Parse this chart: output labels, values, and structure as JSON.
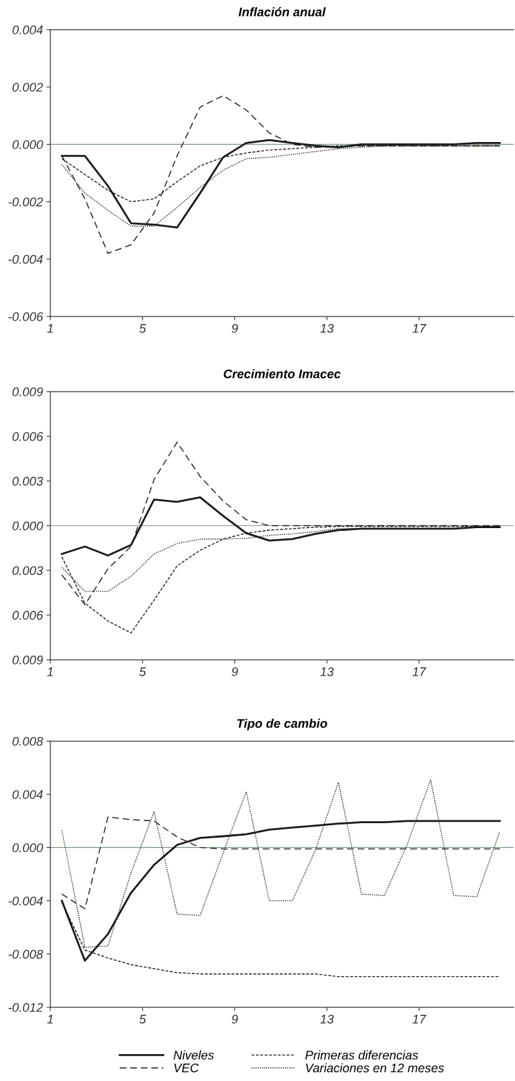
{
  "chart_data": [
    {
      "type": "line",
      "title": "Inflación anual",
      "x": [
        1.5,
        2.5,
        3.5,
        4.5,
        5.5,
        6.5,
        7.5,
        8.5,
        9.5,
        10.5,
        11.5,
        12.5,
        13.5,
        14.5,
        15.5,
        16.5,
        17.5,
        18.5,
        19.5,
        20.5
      ],
      "xlim": [
        1,
        21.1
      ],
      "xticks": [
        1,
        5,
        9,
        13,
        17
      ],
      "ylim": [
        -0.006,
        0.004
      ],
      "yticks": [
        {
          "value": -0.006,
          "label": "-0.006"
        },
        {
          "value": -0.004,
          "label": "-0.004"
        },
        {
          "value": -0.002,
          "label": "-0.002"
        },
        {
          "value": 0,
          "label": "0.000"
        },
        {
          "value": 0.002,
          "label": "0.002"
        },
        {
          "value": 0.004,
          "label": "0.004"
        }
      ],
      "ref_lines": [
        {
          "axis": "y",
          "value": 0,
          "color": "#7a9a7a"
        }
      ],
      "grid": false,
      "legend": false,
      "series": [
        {
          "color": "#1a1a1a",
          "line_style": "solid",
          "values": [
            -0.0004,
            -0.0004,
            -0.00145,
            -0.00275,
            -0.0028,
            -0.0029,
            -0.0017,
            -0.00045,
            5e-05,
            0.00015,
            5e-05,
            -5e-05,
            -0.0001,
            0,
            0,
            0,
            0,
            0,
            5e-05,
            5e-05
          ]
        },
        {
          "color": "#1a1a1a",
          "line_style": "dashed",
          "values": [
            -0.0004,
            -0.0019,
            -0.0038,
            -0.0035,
            -0.0024,
            -0.0004,
            0.0013,
            0.0017,
            0.0012,
            0.0004,
            0,
            -0.0001,
            -0.0001,
            -5e-05,
            -5e-05,
            -5e-05,
            -5e-05,
            -5e-05,
            -5e-05,
            -5e-05
          ]
        },
        {
          "color": "#1a1a1a",
          "line_style": "dashed",
          "values": [
            -0.0005,
            -0.00105,
            -0.0016,
            -0.002,
            -0.0019,
            -0.0013,
            -0.00075,
            -0.00045,
            -0.0003,
            -0.0002,
            -0.00015,
            -0.0001,
            -5e-05,
            -5e-05,
            -5e-05,
            -5e-05,
            -5e-05,
            -5e-05,
            -5e-05,
            -5e-05
          ]
        },
        {
          "color": "#1a1a1a",
          "line_style": "dotted",
          "values": [
            -0.0007,
            -0.0017,
            -0.0023,
            -0.00285,
            -0.00285,
            -0.0022,
            -0.0015,
            -0.0009,
            -0.0005,
            -0.00045,
            -0.00035,
            -0.00025,
            -0.00015,
            -0.0001,
            -5e-05,
            -5e-05,
            -5e-05,
            -5e-05,
            -5e-05,
            -5e-05
          ]
        }
      ]
    },
    {
      "type": "line",
      "title": "Crecimiento Imacec",
      "x": [
        1.5,
        2.5,
        3.5,
        4.5,
        5.5,
        6.5,
        7.5,
        8.5,
        9.5,
        10.5,
        11.5,
        12.5,
        13.5,
        14.5,
        15.5,
        16.5,
        17.5,
        18.5,
        19.5,
        20.5
      ],
      "xlim": [
        1,
        21.1
      ],
      "xticks": [
        1,
        5,
        9,
        13,
        17
      ],
      "ylim": [
        -0.009,
        0.009
      ],
      "yticks": [
        {
          "value": -0.009,
          "label": "0.009"
        },
        {
          "value": -0.006,
          "label": "0.006"
        },
        {
          "value": -0.003,
          "label": "0.003"
        },
        {
          "value": 0,
          "label": "0.000"
        },
        {
          "value": 0.003,
          "label": "0.003"
        },
        {
          "value": 0.006,
          "label": "0.006"
        },
        {
          "value": 0.009,
          "label": "0.009"
        }
      ],
      "ref_lines": [
        {
          "axis": "y",
          "value": 0,
          "color": "#7a9a7a"
        }
      ],
      "grid": false,
      "legend": false,
      "series": [
        {
          "color": "#1a1a1a",
          "line_style": "solid",
          "values": [
            -0.0019,
            -0.0014,
            -0.002,
            -0.0013,
            0.00175,
            0.0016,
            0.0019,
            0.00065,
            -0.0005,
            -0.001,
            -0.0009,
            -0.00055,
            -0.0003,
            -0.0002,
            -0.0002,
            -0.0002,
            -0.0002,
            -0.0002,
            -0.0001,
            -0.0001
          ]
        },
        {
          "color": "#1a1a1a",
          "line_style": "dashed",
          "values": [
            -0.0033,
            -0.0053,
            -0.0029,
            -0.0014,
            0.0031,
            0.0056,
            0.0033,
            0.00165,
            0.0004,
            0,
            0,
            0,
            0,
            0,
            0,
            0,
            0,
            0,
            0,
            0
          ]
        },
        {
          "color": "#1a1a1a",
          "line_style": "dashed",
          "values": [
            -0.0021,
            -0.0052,
            -0.0064,
            -0.0072,
            -0.005,
            -0.0027,
            -0.00165,
            -0.0009,
            -0.0005,
            -0.0003,
            -0.0002,
            -0.0001,
            -5e-05,
            -5e-05,
            -5e-05,
            -5e-05,
            -5e-05,
            -5e-05,
            -5e-05,
            -5e-05
          ]
        },
        {
          "color": "#1a1a1a",
          "line_style": "dotted",
          "values": [
            -0.0028,
            -0.0044,
            -0.0044,
            -0.0034,
            -0.0019,
            -0.0012,
            -0.0009,
            -0.0009,
            -0.00085,
            -0.00065,
            -0.00055,
            -0.0004,
            -0.0002,
            -0.0002,
            -0.0002,
            -0.0002,
            -0.0002,
            -0.0002,
            -0.0001,
            -0.0001
          ]
        }
      ]
    },
    {
      "type": "line",
      "title": "Tipo de cambio",
      "x": [
        1.5,
        2.5,
        3.5,
        4.5,
        5.5,
        6.5,
        7.5,
        8.5,
        9.5,
        10.5,
        11.5,
        12.5,
        13.5,
        14.5,
        15.5,
        16.5,
        17.5,
        18.5,
        19.5,
        20.5
      ],
      "xlim": [
        1,
        21.1
      ],
      "xticks": [
        1,
        5,
        9,
        13,
        17
      ],
      "ylim": [
        -0.012,
        0.008
      ],
      "yticks": [
        {
          "value": -0.012,
          "label": "-0.012"
        },
        {
          "value": -0.008,
          "label": "-0.008"
        },
        {
          "value": -0.004,
          "label": "-0.004"
        },
        {
          "value": 0,
          "label": "0.000"
        },
        {
          "value": 0.004,
          "label": "0.004"
        },
        {
          "value": 0.008,
          "label": "0.008"
        }
      ],
      "ref_lines": [
        {
          "axis": "y",
          "value": 0,
          "color": "#7a9a7a"
        }
      ],
      "grid": false,
      "legend": "bottom",
      "series": [
        {
          "name": "Niveles",
          "color": "#1a1a1a",
          "line_style": "solid",
          "values": [
            -0.004,
            -0.0085,
            -0.0065,
            -0.0034,
            -0.0013,
            0.0002,
            0.00073,
            0.00085,
            0.001,
            0.00135,
            0.0015,
            0.00165,
            0.0018,
            0.0019,
            0.0019,
            0.002,
            0.002,
            0.002,
            0.002,
            0.002
          ]
        },
        {
          "name": "VEC",
          "color": "#1a1a1a",
          "line_style": "dashed",
          "values": [
            -0.0035,
            -0.0046,
            0.0023,
            0.0021,
            0.002,
            0.0008,
            0,
            -0.0001,
            -0.0001,
            -0.0001,
            -0.0001,
            -0.0001,
            -0.0001,
            -0.0001,
            -0.0001,
            -0.0001,
            -0.0001,
            -0.0001,
            -0.0001,
            -0.0001
          ]
        },
        {
          "name": "Primeras diferencias",
          "color": "#1a1a1a",
          "line_style": "dashed",
          "values": [
            -0.0041,
            -0.0077,
            -0.0083,
            -0.0088,
            -0.0091,
            -0.0094,
            -0.0095,
            -0.0095,
            -0.0095,
            -0.0095,
            -0.0095,
            -0.0095,
            -0.0097,
            -0.0097,
            -0.0097,
            -0.0097,
            -0.0097,
            -0.0097,
            -0.0097,
            -0.0097
          ]
        },
        {
          "name": "Variaciones en 12 meses",
          "color": "#1a1a1a",
          "line_style": "dotted",
          "values": [
            0.0013,
            -0.0075,
            -0.0074,
            -0.0019,
            0.0027,
            -0.005,
            -0.0051,
            -0.0004,
            0.0042,
            -0.004,
            -0.004,
            -0.0002,
            0.0049,
            -0.0035,
            -0.0036,
            0.0003,
            0.0051,
            -0.0036,
            -0.0037,
            0.0012
          ]
        }
      ]
    }
  ]
}
